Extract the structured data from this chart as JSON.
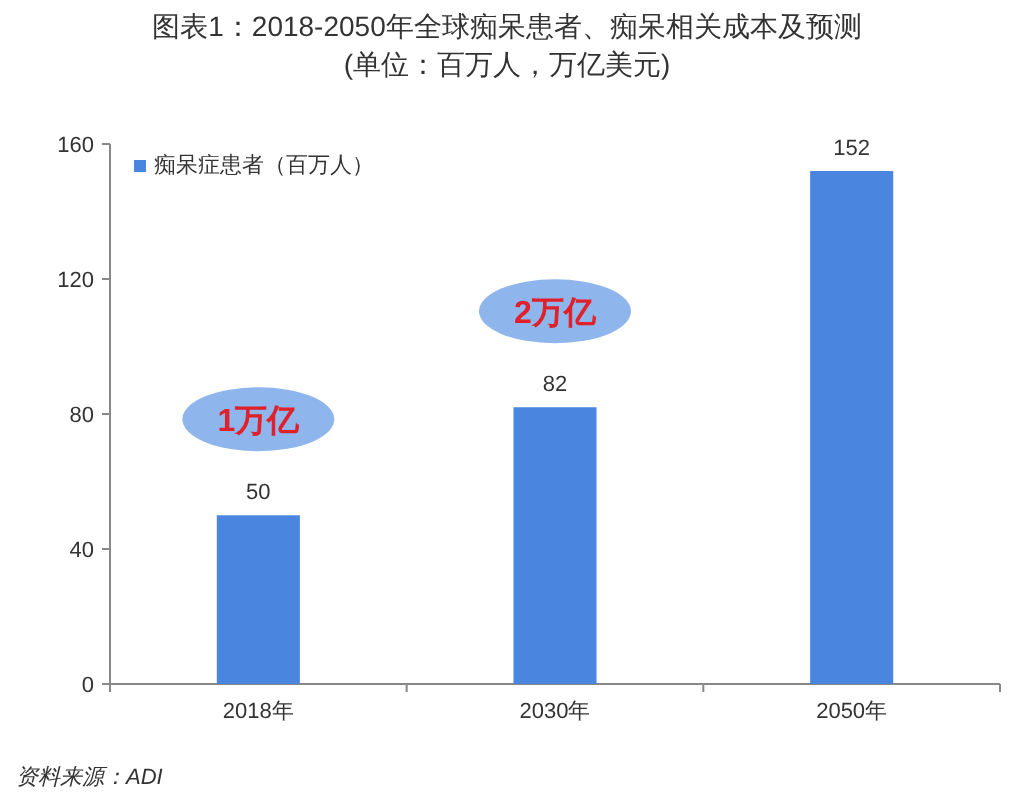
{
  "chart_data": {
    "type": "bar",
    "title": "图表1：2018-2050年全球痴呆患者、痴呆相关成本及预测 (单位：百万人，万亿美元)",
    "categories": [
      "2018年",
      "2030年",
      "2050年"
    ],
    "series": [
      {
        "name": "痴呆症患者（百万人）",
        "color": "#4a86e0",
        "values": [
          50,
          82,
          152
        ]
      }
    ],
    "ylim": [
      0,
      160
    ],
    "yticks": [
      0,
      40,
      80,
      120,
      160
    ],
    "data_labels": true,
    "legend": "top left",
    "grid": false,
    "annotations": [
      "1万亿",
      "2万亿",
      "资料来源：ADI"
    ]
  }
}
